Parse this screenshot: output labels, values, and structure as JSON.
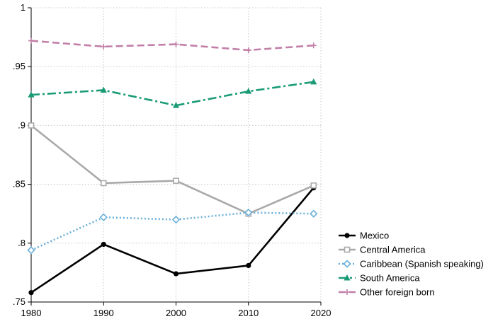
{
  "chart_data": {
    "type": "line",
    "x": [
      1980,
      1990,
      2000,
      2010,
      2019
    ],
    "x_ticks": [
      1980,
      1990,
      2000,
      2010,
      2020
    ],
    "y_ticks": [
      0.75,
      0.8,
      0.85,
      0.9,
      0.95,
      1
    ],
    "y_tick_labels": [
      ".75",
      ".8",
      ".85",
      ".9",
      ".95",
      "1"
    ],
    "xlim": [
      1980,
      2020
    ],
    "ylim": [
      0.75,
      1
    ],
    "grid": true,
    "legend_position": "bottom-right",
    "series": [
      {
        "name": "Mexico",
        "values": [
          0.758,
          0.799,
          0.774,
          0.781,
          0.847
        ],
        "color": "#000000",
        "dash": "solid",
        "marker": "circle"
      },
      {
        "name": "Central America",
        "values": [
          0.9,
          0.851,
          0.853,
          0.825,
          0.849
        ],
        "color": "#a9a9a9",
        "dash": "solid",
        "marker": "square"
      },
      {
        "name": "Caribbean (Spanish speaking)",
        "values": [
          0.794,
          0.822,
          0.82,
          0.826,
          0.825
        ],
        "color": "#6aafd9",
        "dash": "dotted",
        "marker": "diamond"
      },
      {
        "name": "South America",
        "values": [
          0.926,
          0.93,
          0.917,
          0.929,
          0.937
        ],
        "color": "#1a9b76",
        "dash": "dashdot",
        "marker": "triangle"
      },
      {
        "name": "Other foreign born",
        "values": [
          0.972,
          0.967,
          0.969,
          0.964,
          0.968
        ],
        "color": "#c17fa8",
        "dash": "dashed",
        "marker": "plus"
      }
    ]
  }
}
